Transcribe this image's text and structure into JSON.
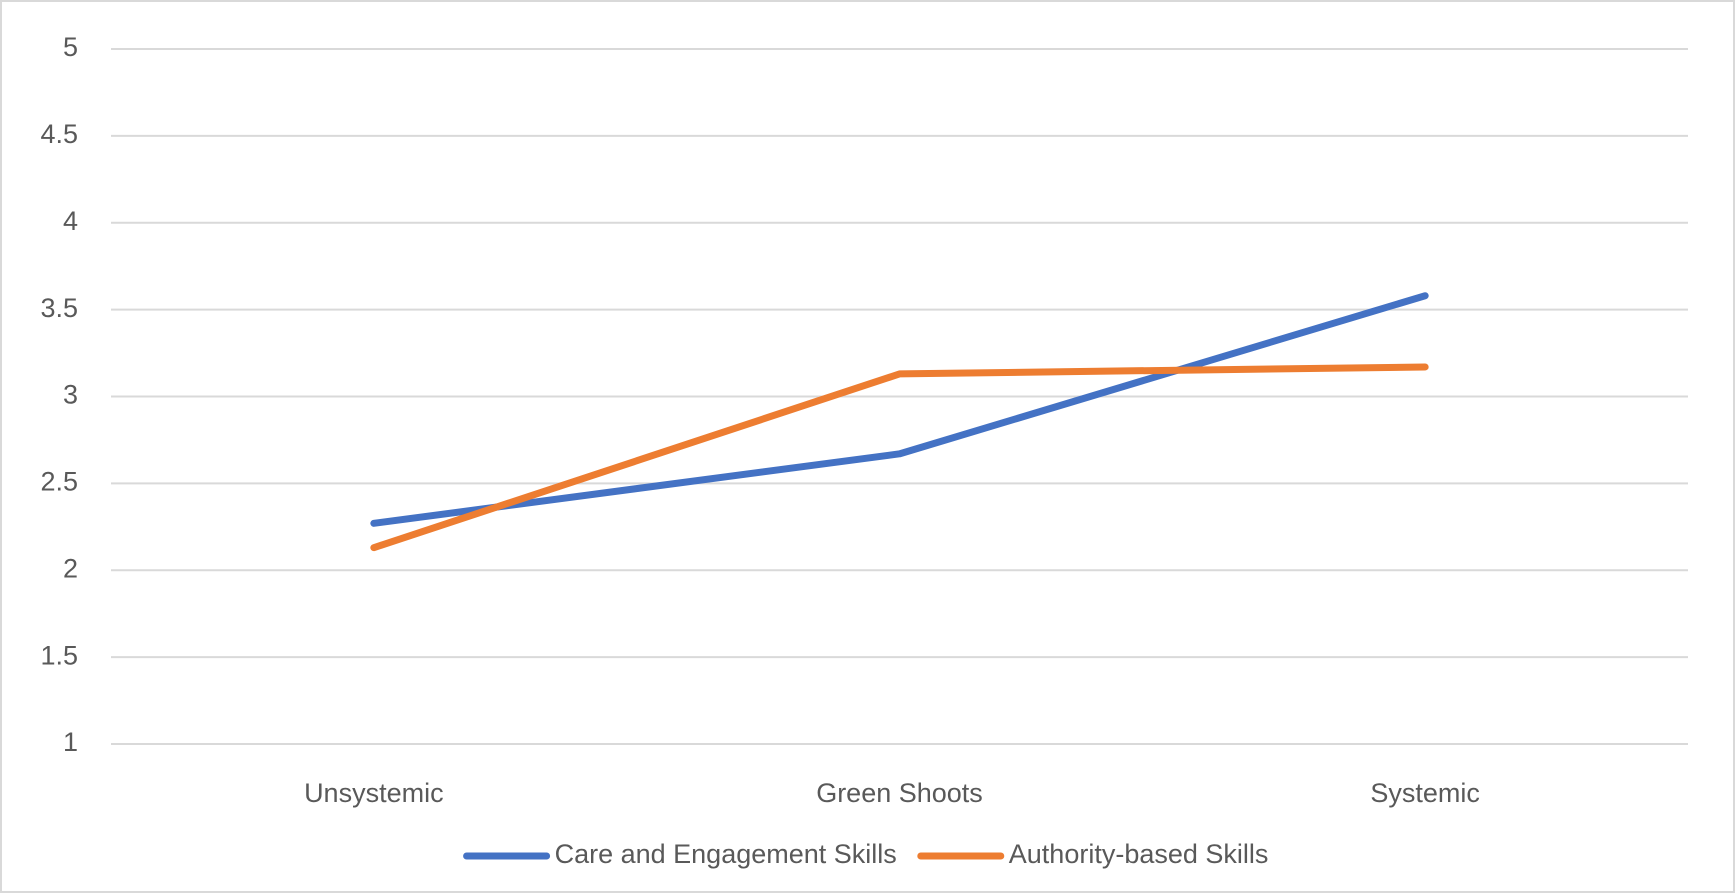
{
  "chart_data": {
    "type": "line",
    "categories": [
      "Unsystemic",
      "Green Shoots",
      "Systemic"
    ],
    "series": [
      {
        "name": "Care and Engagement Skills",
        "color": "#4472c4",
        "values": [
          2.27,
          2.67,
          3.58
        ]
      },
      {
        "name": "Authority-based Skills",
        "color": "#ed7d31",
        "values": [
          2.13,
          3.13,
          3.17
        ]
      }
    ],
    "ylim": [
      1,
      5
    ],
    "yticks": [
      1,
      1.5,
      2,
      2.5,
      3,
      3.5,
      4,
      4.5,
      5
    ],
    "grid": true,
    "legend": "bottom"
  }
}
